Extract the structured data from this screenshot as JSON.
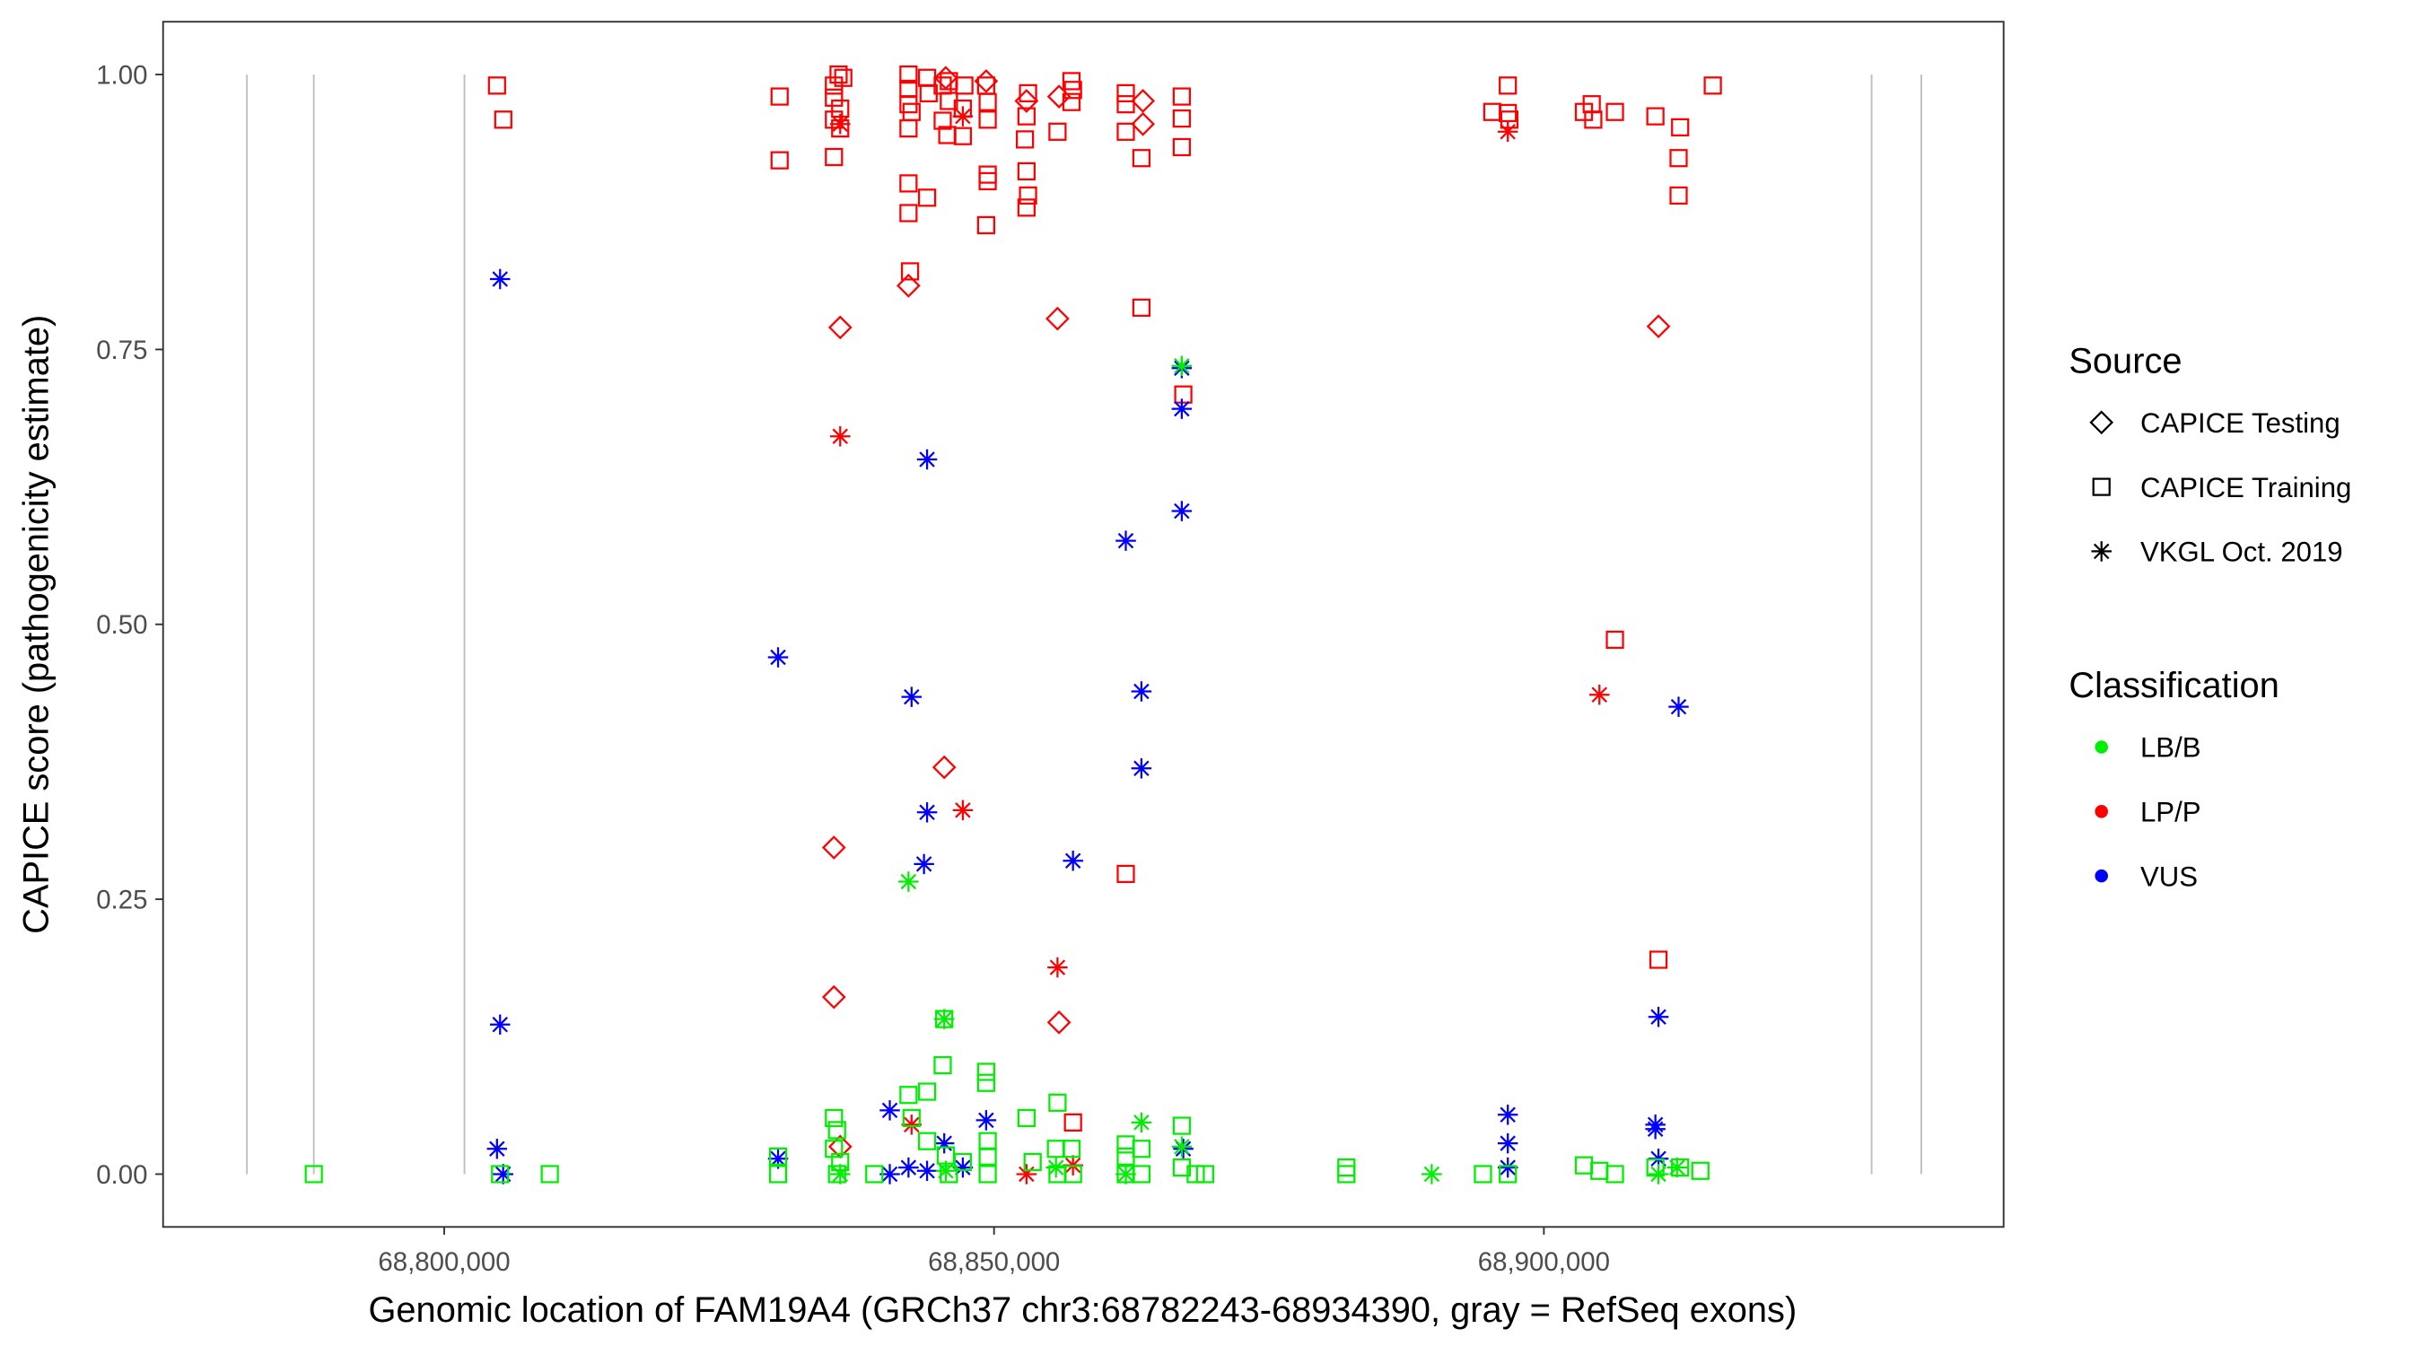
{
  "chart_data": {
    "type": "scatter",
    "xlabel": "Genomic location of FAM19A4 (GRCh37 chr3:68782243-68934390, gray = RefSeq exons)",
    "ylabel": "CAPICE score (pathogenicity estimate)",
    "xlim": [
      68775000,
      68942000
    ],
    "ylim": [
      -0.05,
      1.05
    ],
    "grid": false,
    "x_ticks": [
      {
        "value": 68800000,
        "label": "68,800,000"
      },
      {
        "value": 68850000,
        "label": "68,850,000"
      },
      {
        "value": 68900000,
        "label": "68,900,000"
      }
    ],
    "y_ticks": [
      {
        "value": 0.0,
        "label": "0.00"
      },
      {
        "value": 0.25,
        "label": "0.25"
      },
      {
        "value": 0.5,
        "label": "0.50"
      },
      {
        "value": 0.75,
        "label": "0.75"
      },
      {
        "value": 1.0,
        "label": "1.00"
      }
    ],
    "exons": [
      68782060,
      68788140,
      68801840,
      68929800,
      68934320
    ],
    "exon_color": "#bfbfbf",
    "legend": {
      "placement": "right",
      "source": {
        "title": "Source",
        "items": [
          {
            "key": "T",
            "label": "CAPICE Testing",
            "shape": "diamond"
          },
          {
            "key": "R",
            "label": "CAPICE Training",
            "shape": "square"
          },
          {
            "key": "V",
            "label": "VKGL Oct. 2019",
            "shape": "asterisk"
          }
        ]
      },
      "classification": {
        "title": "Classification",
        "items": [
          {
            "key": "LB/B",
            "label": "LB/B",
            "color": "#00ee00"
          },
          {
            "key": "LP/P",
            "label": "LP/P",
            "color": "#ff0000"
          },
          {
            "key": "VUS",
            "label": "VUS",
            "color": "#0000ff"
          }
        ]
      }
    },
    "point_fields": [
      "position_bp",
      "score",
      "source",
      "classification"
    ],
    "points": [
      [
        68804800,
        0.99,
        "R",
        "LP/P"
      ],
      [
        68805370,
        0.959,
        "R",
        "LP/P"
      ],
      [
        68830500,
        0.98,
        "R",
        "LP/P"
      ],
      [
        68830500,
        0.922,
        "R",
        "LP/P"
      ],
      [
        68835440,
        0.99,
        "R",
        "LP/P"
      ],
      [
        68835860,
        1.0,
        "R",
        "LP/P"
      ],
      [
        68836290,
        0.997,
        "R",
        "LP/P"
      ],
      [
        68835440,
        0.979,
        "R",
        "LP/P"
      ],
      [
        68836010,
        0.969,
        "R",
        "LP/P"
      ],
      [
        68835440,
        0.959,
        "R",
        "LP/P"
      ],
      [
        68836010,
        0.951,
        "R",
        "LP/P"
      ],
      [
        68835440,
        0.925,
        "R",
        "LP/P"
      ],
      [
        68842220,
        1.0,
        "R",
        "LP/P"
      ],
      [
        68842220,
        0.987,
        "R",
        "LP/P"
      ],
      [
        68842220,
        0.973,
        "R",
        "LP/P"
      ],
      [
        68842500,
        0.966,
        "R",
        "LP/P"
      ],
      [
        68842220,
        0.951,
        "R",
        "LP/P"
      ],
      [
        68842220,
        0.901,
        "R",
        "LP/P"
      ],
      [
        68842220,
        0.874,
        "R",
        "LP/P"
      ],
      [
        68843910,
        0.888,
        "R",
        "LP/P"
      ],
      [
        68842360,
        0.821,
        "R",
        "LP/P"
      ],
      [
        68843910,
        0.997,
        "R",
        "LP/P"
      ],
      [
        68844050,
        0.983,
        "R",
        "LP/P"
      ],
      [
        68845330,
        0.99,
        "R",
        "LP/P"
      ],
      [
        68845890,
        0.994,
        "R",
        "LP/P"
      ],
      [
        68845890,
        0.976,
        "R",
        "LP/P"
      ],
      [
        68845330,
        0.958,
        "R",
        "LP/P"
      ],
      [
        68845750,
        0.945,
        "R",
        "LP/P"
      ],
      [
        68847160,
        0.944,
        "R",
        "LP/P"
      ],
      [
        68847300,
        0.99,
        "R",
        "LP/P"
      ],
      [
        68847160,
        0.969,
        "R",
        "LP/P"
      ],
      [
        68849280,
        0.99,
        "R",
        "LP/P"
      ],
      [
        68849420,
        0.975,
        "R",
        "LP/P"
      ],
      [
        68849420,
        0.959,
        "R",
        "LP/P"
      ],
      [
        68849420,
        0.909,
        "R",
        "LP/P"
      ],
      [
        68849420,
        0.903,
        "R",
        "LP/P"
      ],
      [
        68849280,
        0.863,
        "R",
        "LP/P"
      ],
      [
        68853090,
        0.983,
        "R",
        "LP/P"
      ],
      [
        68852950,
        0.962,
        "R",
        "LP/P"
      ],
      [
        68852810,
        0.941,
        "R",
        "LP/P"
      ],
      [
        68852950,
        0.912,
        "R",
        "LP/P"
      ],
      [
        68853090,
        0.89,
        "R",
        "LP/P"
      ],
      [
        68852950,
        0.879,
        "R",
        "LP/P"
      ],
      [
        68855770,
        0.948,
        "R",
        "LP/P"
      ],
      [
        68857040,
        0.994,
        "R",
        "LP/P"
      ],
      [
        68857180,
        0.986,
        "R",
        "LP/P"
      ],
      [
        68857040,
        0.975,
        "R",
        "LP/P"
      ],
      [
        68861980,
        0.983,
        "R",
        "LP/P"
      ],
      [
        68861980,
        0.973,
        "R",
        "LP/P"
      ],
      [
        68861980,
        0.948,
        "R",
        "LP/P"
      ],
      [
        68863400,
        0.924,
        "R",
        "LP/P"
      ],
      [
        68863400,
        0.788,
        "R",
        "LP/P"
      ],
      [
        68867070,
        0.98,
        "R",
        "LP/P"
      ],
      [
        68867070,
        0.96,
        "R",
        "LP/P"
      ],
      [
        68867070,
        0.934,
        "R",
        "LP/P"
      ],
      [
        68867210,
        0.709,
        "R",
        "LP/P"
      ],
      [
        68861980,
        0.273,
        "R",
        "LP/P"
      ],
      [
        68895310,
        0.966,
        "R",
        "LP/P"
      ],
      [
        68896720,
        0.99,
        "R",
        "LP/P"
      ],
      [
        68896720,
        0.965,
        "R",
        "LP/P"
      ],
      [
        68896860,
        0.959,
        "R",
        "LP/P"
      ],
      [
        68903640,
        0.966,
        "R",
        "LP/P"
      ],
      [
        68904350,
        0.973,
        "R",
        "LP/P"
      ],
      [
        68904490,
        0.959,
        "R",
        "LP/P"
      ],
      [
        68906460,
        0.966,
        "R",
        "LP/P"
      ],
      [
        68910140,
        0.962,
        "R",
        "LP/P"
      ],
      [
        68912390,
        0.952,
        "R",
        "LP/P"
      ],
      [
        68912250,
        0.924,
        "R",
        "LP/P"
      ],
      [
        68912250,
        0.89,
        "R",
        "LP/P"
      ],
      [
        68915360,
        0.99,
        "R",
        "LP/P"
      ],
      [
        68906460,
        0.486,
        "R",
        "LP/P"
      ],
      [
        68910420,
        0.195,
        "R",
        "LP/P"
      ],
      [
        68857180,
        0.047,
        "R",
        "LP/P"
      ],
      [
        68845610,
        0.997,
        "T",
        "LP/P"
      ],
      [
        68849280,
        0.994,
        "T",
        "LP/P"
      ],
      [
        68852950,
        0.976,
        "T",
        "LP/P"
      ],
      [
        68855910,
        0.98,
        "T",
        "LP/P"
      ],
      [
        68863540,
        0.976,
        "T",
        "LP/P"
      ],
      [
        68863540,
        0.955,
        "T",
        "LP/P"
      ],
      [
        68842220,
        0.808,
        "T",
        "LP/P"
      ],
      [
        68836010,
        0.77,
        "T",
        "LP/P"
      ],
      [
        68855770,
        0.778,
        "T",
        "LP/P"
      ],
      [
        68910420,
        0.771,
        "T",
        "LP/P"
      ],
      [
        68845470,
        0.37,
        "T",
        "LP/P"
      ],
      [
        68835440,
        0.297,
        "T",
        "LP/P"
      ],
      [
        68835440,
        0.161,
        "T",
        "LP/P"
      ],
      [
        68855910,
        0.138,
        "T",
        "LP/P"
      ],
      [
        68836010,
        0.025,
        "T",
        "LP/P"
      ],
      [
        68836010,
        0.955,
        "V",
        "LP/P"
      ],
      [
        68847160,
        0.962,
        "V",
        "LP/P"
      ],
      [
        68896720,
        0.948,
        "V",
        "LP/P"
      ],
      [
        68836010,
        0.671,
        "V",
        "LP/P"
      ],
      [
        68847160,
        0.331,
        "V",
        "LP/P"
      ],
      [
        68905050,
        0.436,
        "V",
        "LP/P"
      ],
      [
        68855770,
        0.188,
        "V",
        "LP/P"
      ],
      [
        68842500,
        0.045,
        "V",
        "LP/P"
      ],
      [
        68852950,
        0.0,
        "V",
        "LP/P"
      ],
      [
        68857180,
        0.008,
        "V",
        "LP/P"
      ],
      [
        68805080,
        0.814,
        "V",
        "VUS"
      ],
      [
        68805080,
        0.136,
        "V",
        "VUS"
      ],
      [
        68804800,
        0.023,
        "V",
        "VUS"
      ],
      [
        68805360,
        0.0,
        "V",
        "VUS"
      ],
      [
        68830360,
        0.47,
        "V",
        "VUS"
      ],
      [
        68830360,
        0.014,
        "V",
        "VUS"
      ],
      [
        68842500,
        0.434,
        "V",
        "VUS"
      ],
      [
        68843910,
        0.65,
        "V",
        "VUS"
      ],
      [
        68843910,
        0.329,
        "V",
        "VUS"
      ],
      [
        68843630,
        0.282,
        "V",
        "VUS"
      ],
      [
        68840520,
        0.058,
        "V",
        "VUS"
      ],
      [
        68840520,
        0.0,
        "V",
        "VUS"
      ],
      [
        68842220,
        0.006,
        "V",
        "VUS"
      ],
      [
        68845470,
        0.028,
        "V",
        "VUS"
      ],
      [
        68843910,
        0.003,
        "V",
        "VUS"
      ],
      [
        68847160,
        0.006,
        "V",
        "VUS"
      ],
      [
        68849280,
        0.049,
        "V",
        "VUS"
      ],
      [
        68857180,
        0.285,
        "V",
        "VUS"
      ],
      [
        68861980,
        0.576,
        "V",
        "VUS"
      ],
      [
        68863400,
        0.439,
        "V",
        "VUS"
      ],
      [
        68863400,
        0.369,
        "V",
        "VUS"
      ],
      [
        68867070,
        0.733,
        "V",
        "VUS"
      ],
      [
        68867070,
        0.696,
        "V",
        "VUS"
      ],
      [
        68867070,
        0.603,
        "V",
        "VUS"
      ],
      [
        68867210,
        0.023,
        "V",
        "VUS"
      ],
      [
        68896720,
        0.054,
        "V",
        "VUS"
      ],
      [
        68896720,
        0.028,
        "V",
        "VUS"
      ],
      [
        68896720,
        0.006,
        "V",
        "VUS"
      ],
      [
        68910140,
        0.045,
        "V",
        "VUS"
      ],
      [
        68910140,
        0.041,
        "V",
        "VUS"
      ],
      [
        68910420,
        0.014,
        "V",
        "VUS"
      ],
      [
        68910420,
        0.143,
        "V",
        "VUS"
      ],
      [
        68912250,
        0.425,
        "V",
        "VUS"
      ],
      [
        68788140,
        0.0,
        "R",
        "LB/B"
      ],
      [
        68805080,
        0.0,
        "R",
        "LB/B"
      ],
      [
        68809600,
        0.0,
        "R",
        "LB/B"
      ],
      [
        68830360,
        0.0,
        "R",
        "LB/B"
      ],
      [
        68830360,
        0.016,
        "R",
        "LB/B"
      ],
      [
        68835440,
        0.051,
        "R",
        "LB/B"
      ],
      [
        68835720,
        0.04,
        "R",
        "LB/B"
      ],
      [
        68835440,
        0.023,
        "R",
        "LB/B"
      ],
      [
        68836010,
        0.011,
        "R",
        "LB/B"
      ],
      [
        68835720,
        0.0,
        "R",
        "LB/B"
      ],
      [
        68839110,
        0.0,
        "R",
        "LB/B"
      ],
      [
        68842220,
        0.072,
        "R",
        "LB/B"
      ],
      [
        68842500,
        0.051,
        "R",
        "LB/B"
      ],
      [
        68843910,
        0.075,
        "R",
        "LB/B"
      ],
      [
        68845330,
        0.099,
        "R",
        "LB/B"
      ],
      [
        68843910,
        0.03,
        "R",
        "LB/B"
      ],
      [
        68845610,
        0.017,
        "R",
        "LB/B"
      ],
      [
        68847160,
        0.011,
        "R",
        "LB/B"
      ],
      [
        68845890,
        0.0,
        "R",
        "LB/B"
      ],
      [
        68849280,
        0.093,
        "R",
        "LB/B"
      ],
      [
        68849280,
        0.083,
        "R",
        "LB/B"
      ],
      [
        68849420,
        0.03,
        "R",
        "LB/B"
      ],
      [
        68849420,
        0.016,
        "R",
        "LB/B"
      ],
      [
        68849420,
        0.0,
        "R",
        "LB/B"
      ],
      [
        68852950,
        0.051,
        "R",
        "LB/B"
      ],
      [
        68853510,
        0.011,
        "R",
        "LB/B"
      ],
      [
        68855770,
        0.065,
        "R",
        "LB/B"
      ],
      [
        68855630,
        0.023,
        "R",
        "LB/B"
      ],
      [
        68857040,
        0.023,
        "R",
        "LB/B"
      ],
      [
        68857180,
        0.0,
        "R",
        "LB/B"
      ],
      [
        68861980,
        0.027,
        "R",
        "LB/B"
      ],
      [
        68861980,
        0.016,
        "R",
        "LB/B"
      ],
      [
        68863400,
        0.023,
        "R",
        "LB/B"
      ],
      [
        68863400,
        0.0,
        "R",
        "LB/B"
      ],
      [
        68867070,
        0.044,
        "R",
        "LB/B"
      ],
      [
        68867070,
        0.006,
        "R",
        "LB/B"
      ],
      [
        68868340,
        0.0,
        "R",
        "LB/B"
      ],
      [
        68869190,
        0.0,
        "R",
        "LB/B"
      ],
      [
        68882040,
        0.006,
        "R",
        "LB/B"
      ],
      [
        68882040,
        0.0,
        "R",
        "LB/B"
      ],
      [
        68894460,
        0.0,
        "R",
        "LB/B"
      ],
      [
        68896720,
        0.0,
        "R",
        "LB/B"
      ],
      [
        68903640,
        0.008,
        "R",
        "LB/B"
      ],
      [
        68905050,
        0.003,
        "R",
        "LB/B"
      ],
      [
        68906460,
        0.0,
        "R",
        "LB/B"
      ],
      [
        68910140,
        0.006,
        "R",
        "LB/B"
      ],
      [
        68912390,
        0.006,
        "R",
        "LB/B"
      ],
      [
        68914230,
        0.003,
        "R",
        "LB/B"
      ],
      [
        68855770,
        0.0,
        "R",
        "LB/B"
      ],
      [
        68861980,
        0.0,
        "R",
        "LB/B"
      ],
      [
        68845470,
        0.141,
        "R",
        "LB/B"
      ],
      [
        68842220,
        0.266,
        "V",
        "LB/B"
      ],
      [
        68863400,
        0.047,
        "V",
        "LB/B"
      ],
      [
        68867070,
        0.025,
        "V",
        "LB/B"
      ],
      [
        68889800,
        0.0,
        "V",
        "LB/B"
      ],
      [
        68912110,
        0.006,
        "V",
        "LB/B"
      ],
      [
        68910420,
        0.0,
        "V",
        "LB/B"
      ],
      [
        68836010,
        0.0,
        "V",
        "LB/B"
      ],
      [
        68845610,
        0.003,
        "V",
        "LB/B"
      ],
      [
        68855630,
        0.006,
        "V",
        "LB/B"
      ],
      [
        68867070,
        0.735,
        "V",
        "LB/B"
      ],
      [
        68845470,
        0.141,
        "V",
        "LB/B"
      ],
      [
        68861980,
        0.0,
        "V",
        "LB/B"
      ]
    ]
  }
}
